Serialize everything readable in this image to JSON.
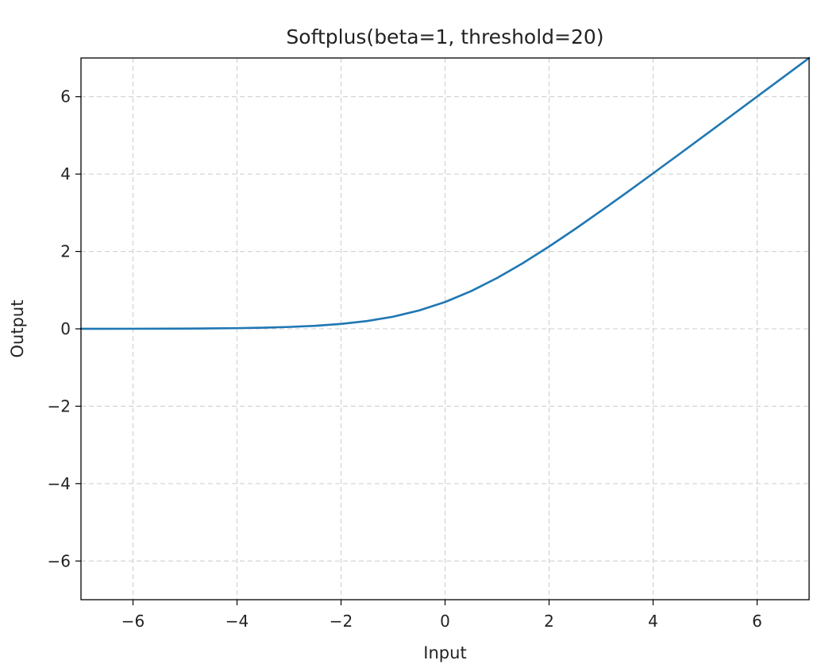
{
  "chart_data": {
    "type": "line",
    "title": "Softplus(beta=1, threshold=20)",
    "xlabel": "Input",
    "ylabel": "Output",
    "xlim": [
      -7,
      7
    ],
    "ylim": [
      -7,
      7
    ],
    "grid": true,
    "line_color": "#1f77b4",
    "x_ticks": [
      -6,
      -4,
      -2,
      0,
      2,
      4,
      6
    ],
    "x_tick_labels": [
      "−6",
      "−4",
      "−2",
      "0",
      "2",
      "4",
      "6"
    ],
    "y_ticks": [
      -6,
      -4,
      -2,
      0,
      2,
      4,
      6
    ],
    "y_tick_labels": [
      "−6",
      "−4",
      "−2",
      "0",
      "2",
      "4",
      "6"
    ],
    "series": [
      {
        "x": [
          -7,
          -6.5,
          -6,
          -5.5,
          -5,
          -4.5,
          -4,
          -3.5,
          -3,
          -2.5,
          -2,
          -1.5,
          -1,
          -0.5,
          0,
          0.5,
          1,
          1.5,
          2,
          2.5,
          3,
          3.5,
          4,
          4.5,
          5,
          5.5,
          6,
          6.5,
          7
        ],
        "values": [
          0.0009,
          0.0015,
          0.0025,
          0.0041,
          0.0067,
          0.011,
          0.0181,
          0.0298,
          0.0486,
          0.0789,
          0.1269,
          0.2014,
          0.3133,
          0.4741,
          0.6931,
          0.9741,
          1.3133,
          1.7014,
          2.1269,
          2.5789,
          3.0486,
          3.5298,
          4.0181,
          4.511,
          5.0067,
          5.5041,
          6.0025,
          6.5015,
          7.0009
        ]
      }
    ]
  }
}
